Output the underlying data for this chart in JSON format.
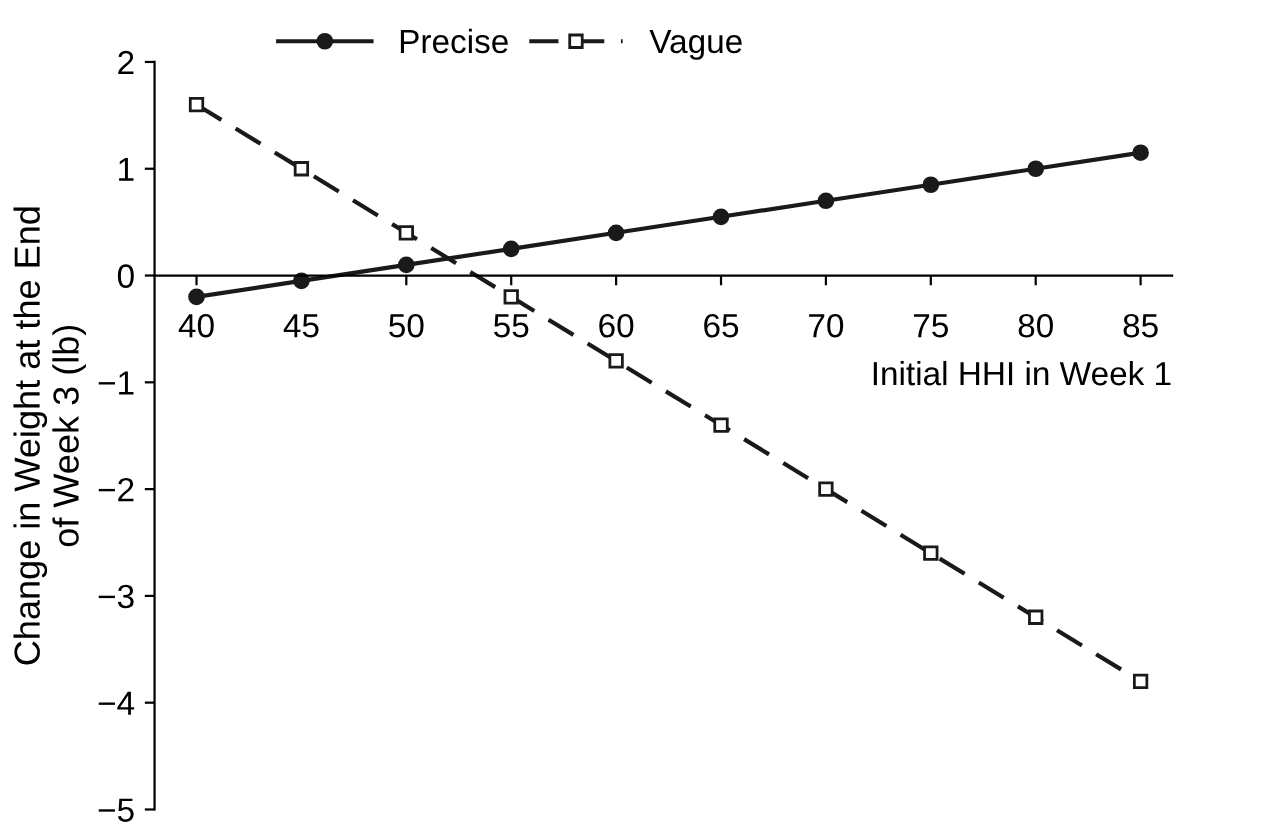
{
  "chart_data": {
    "type": "line",
    "xlabel": "Initial HHI in Week 1",
    "ylabel": "Change in Weight at the End\nof Week 3 (lb)",
    "x": [
      40,
      45,
      50,
      55,
      60,
      65,
      70,
      75,
      80,
      85
    ],
    "series": [
      {
        "name": "Precise",
        "color": "#1a1a1a",
        "marker": "circle",
        "line_style": "solid",
        "values": [
          -0.2,
          -0.05,
          0.1,
          0.25,
          0.4,
          0.55,
          0.7,
          0.85,
          1.0,
          1.15
        ]
      },
      {
        "name": "Vague",
        "color": "#1a1a1a",
        "marker": "square",
        "line_style": "dashed",
        "values": [
          1.6,
          1.0,
          0.4,
          -0.2,
          -0.8,
          -1.4,
          -2.0,
          -2.6,
          -3.2,
          -3.8
        ]
      }
    ],
    "xlim": [
      38,
      86.5
    ],
    "ylim": [
      -5,
      2
    ],
    "xticks": [
      40,
      45,
      50,
      55,
      60,
      65,
      70,
      75,
      80,
      85
    ],
    "yticks": [
      {
        "value": -5,
        "label": "−5"
      },
      {
        "value": -4,
        "label": "−4"
      },
      {
        "value": -3,
        "label": "−3"
      },
      {
        "value": -2,
        "label": "−2"
      },
      {
        "value": -1,
        "label": "−1"
      },
      0,
      1,
      2
    ],
    "grid": false,
    "legend": "top"
  }
}
